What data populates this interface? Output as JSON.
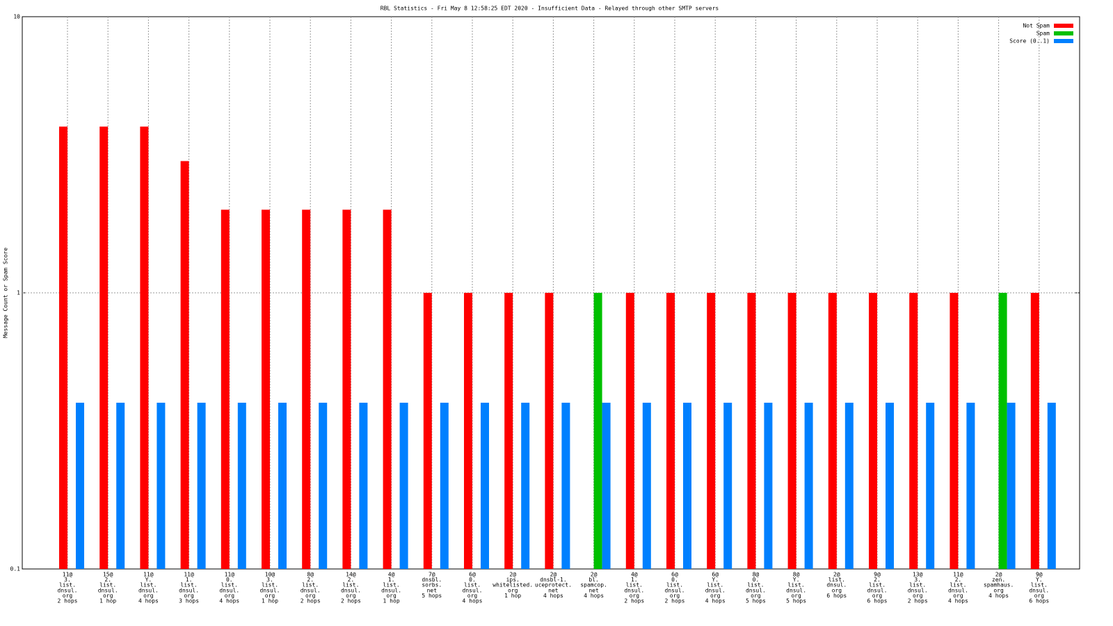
{
  "chart_data": {
    "type": "bar",
    "title": "RBL Statistics - Fri May  8 12:58:25 EDT 2020 - Insufficient Data - Relayed through other SMTP servers",
    "ylabel": "Message Count or Spam Score",
    "ylog": true,
    "grid": true,
    "legend": "top-right",
    "ylim": [
      0.1,
      10
    ],
    "yticks": [
      0.1,
      1,
      10
    ],
    "categories": [
      [
        "11@",
        "3.",
        "list.",
        "dnsul.",
        "org",
        "2 hops"
      ],
      [
        "15@",
        "2.",
        "list.",
        "dnsul.",
        "org",
        "1 hop"
      ],
      [
        "11@",
        "Y.",
        "list.",
        "dnsul.",
        "org",
        "4 hops"
      ],
      [
        "11@",
        "1.",
        "list.",
        "dnsul.",
        "org",
        "3 hops"
      ],
      [
        "11@",
        "0.",
        "list.",
        "dnsul.",
        "org",
        "4 hops"
      ],
      [
        "10@",
        "3.",
        "list.",
        "dnsul.",
        "org",
        "1 hop"
      ],
      [
        "8@",
        "2.",
        "list.",
        "dnsul.",
        "org",
        "2 hops"
      ],
      [
        "14@",
        "2.",
        "list.",
        "dnsul.",
        "org",
        "2 hops"
      ],
      [
        "4@",
        "1.",
        "list.",
        "dnsul.",
        "org",
        "1 hop"
      ],
      [
        "7@",
        "dnsbl.",
        "sorbs.",
        "net",
        "5 hops"
      ],
      [
        "6@",
        "0.",
        "list.",
        "dnsul.",
        "org",
        "4 hops"
      ],
      [
        "2@",
        "ips.",
        "whitelisted.",
        "org",
        "1 hop"
      ],
      [
        "2@",
        "dnsbl-1.",
        "uceprotect.",
        "net",
        "4 hops"
      ],
      [
        "2@",
        "bl.",
        "spamcop.",
        "net",
        "4 hops"
      ],
      [
        "4@",
        "1.",
        "list.",
        "dnsul.",
        "org",
        "2 hops"
      ],
      [
        "6@",
        "0.",
        "list.",
        "dnsul.",
        "org",
        "2 hops"
      ],
      [
        "6@",
        "Y.",
        "list.",
        "dnsul.",
        "org",
        "4 hops"
      ],
      [
        "8@",
        "0.",
        "list.",
        "dnsul.",
        "org",
        "5 hops"
      ],
      [
        "8@",
        "Y.",
        "list.",
        "dnsul.",
        "org",
        "5 hops"
      ],
      [
        "2@",
        "list.",
        "dnsul.",
        "org",
        "6 hops"
      ],
      [
        "9@",
        "2.",
        "list.",
        "dnsul.",
        "org",
        "6 hops"
      ],
      [
        "13@",
        "3.",
        "list.",
        "dnsul.",
        "org",
        "2 hops"
      ],
      [
        "11@",
        "2.",
        "list.",
        "dnsul.",
        "org",
        "4 hops"
      ],
      [
        "2@",
        "zen.",
        "spamhaus.",
        "org",
        "4 hops"
      ],
      [
        "9@",
        "Y.",
        "list.",
        "dnsul.",
        "org",
        "6 hops"
      ]
    ],
    "series": [
      {
        "name": "Not Spam",
        "color": "#ff0000",
        "values": [
          4,
          4,
          4,
          3,
          2,
          2,
          2,
          2,
          2,
          1,
          1,
          1,
          1,
          null,
          1,
          1,
          1,
          1,
          1,
          1,
          1,
          1,
          1,
          null,
          1
        ]
      },
      {
        "name": "Spam",
        "color": "#00c000",
        "values": [
          null,
          null,
          null,
          null,
          null,
          null,
          null,
          null,
          null,
          null,
          null,
          null,
          null,
          1,
          null,
          null,
          null,
          null,
          null,
          null,
          null,
          null,
          null,
          1,
          null
        ]
      },
      {
        "name": "Score (0..1)",
        "color": "#0080ff",
        "values": [
          0.4,
          0.4,
          0.4,
          0.4,
          0.4,
          0.4,
          0.4,
          0.4,
          0.4,
          0.4,
          0.4,
          0.4,
          0.4,
          0.4,
          0.4,
          0.4,
          0.4,
          0.4,
          0.4,
          0.4,
          0.4,
          0.4,
          0.4,
          0.4,
          0.4
        ]
      }
    ]
  }
}
